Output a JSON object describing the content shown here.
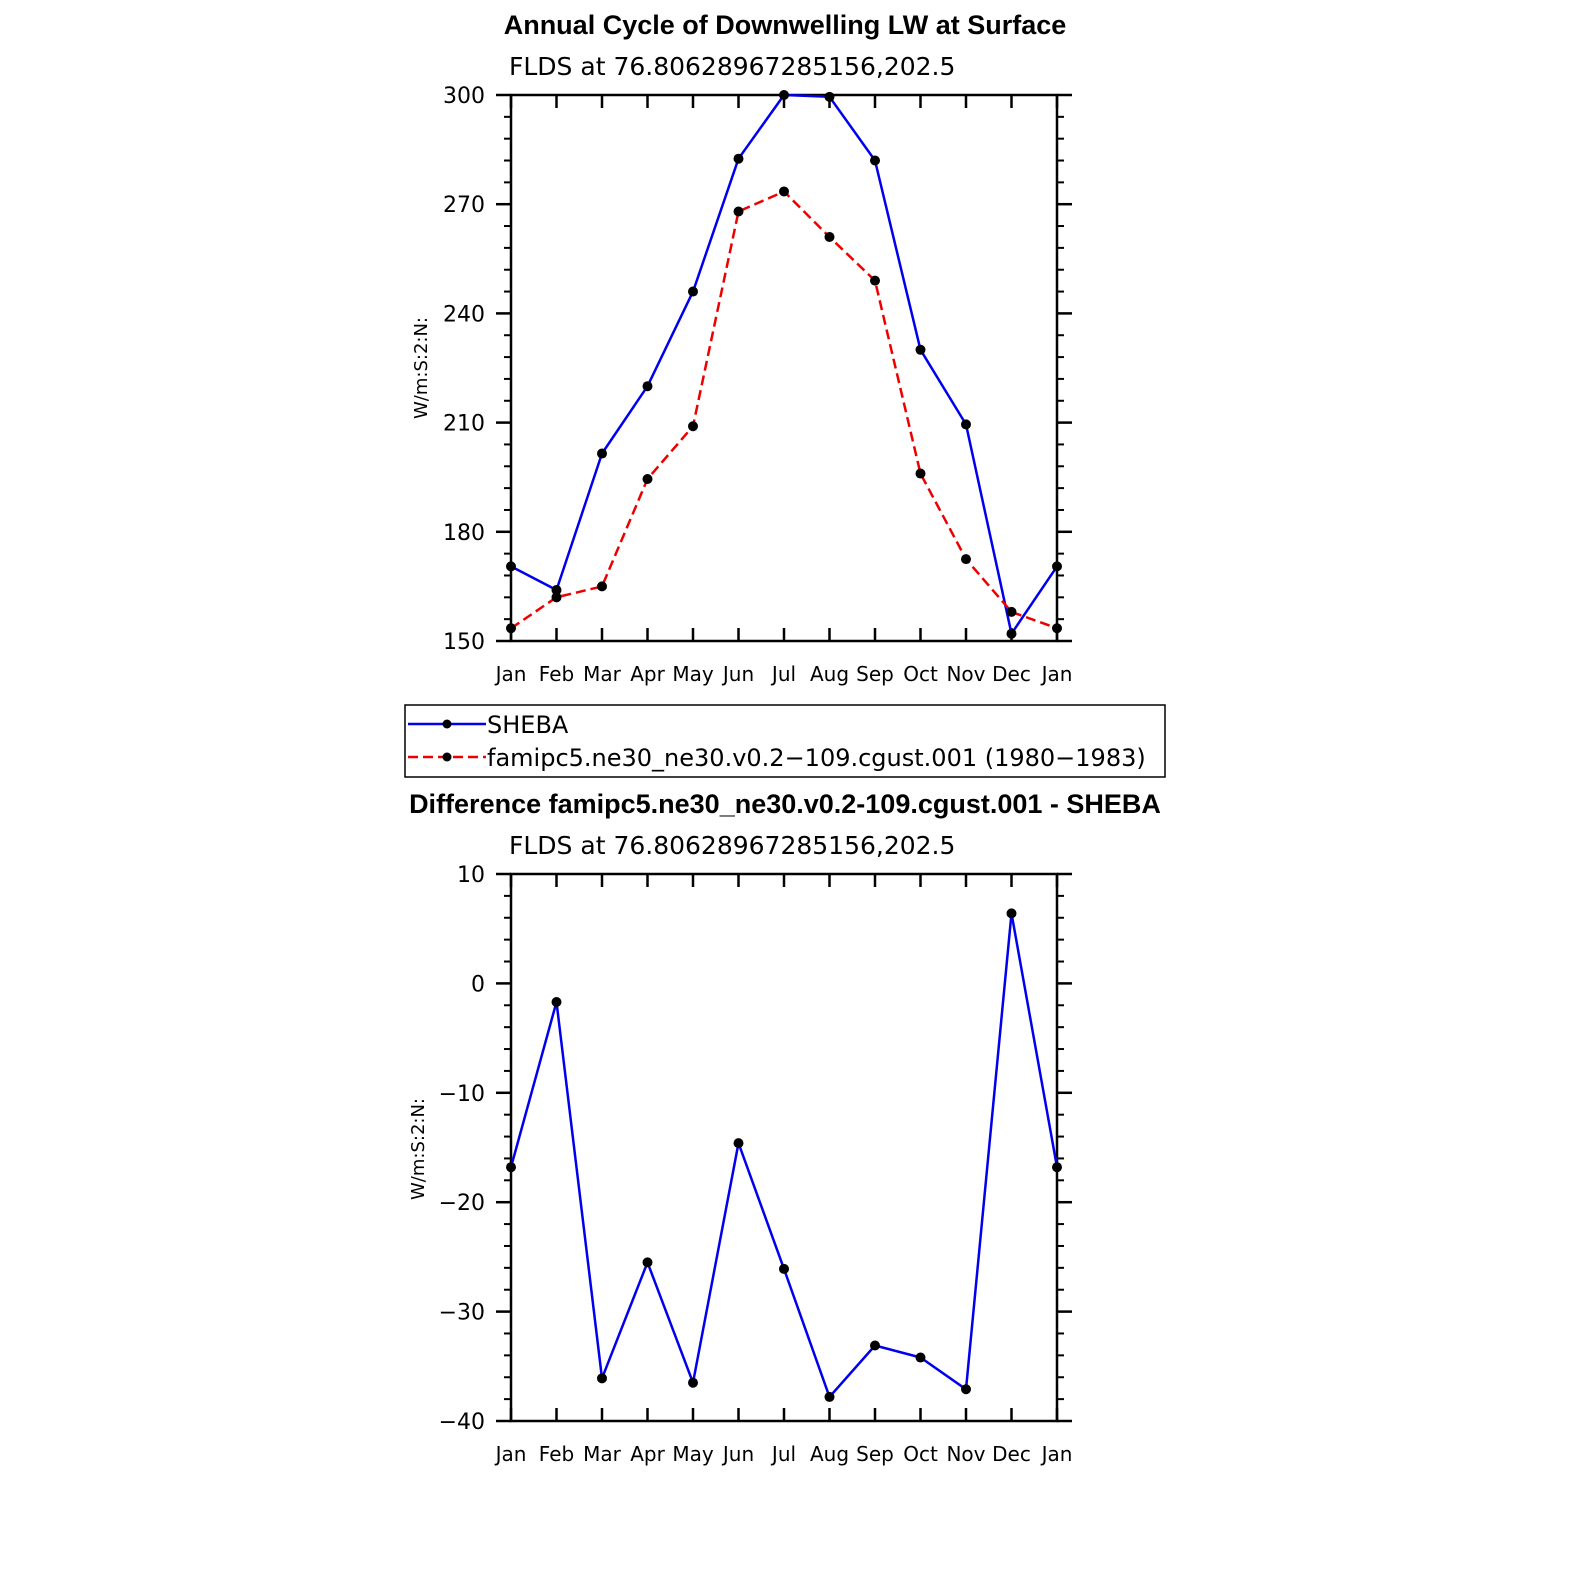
{
  "colors": {
    "sheba": "#0000ee",
    "model": "#ee0000",
    "marker": "#000000",
    "axis": "#000000"
  },
  "chart_data": [
    {
      "type": "line",
      "title": "Annual Cycle of Downwelling LW at Surface",
      "subtitle": "FLDS  at  76.80628967285156,202.5",
      "xlabel": "",
      "ylabel": "W/m:S:2:N:",
      "categories": [
        "Jan",
        "Feb",
        "Mar",
        "Apr",
        "May",
        "Jun",
        "Jul",
        "Aug",
        "Sep",
        "Oct",
        "Nov",
        "Dec",
        "Jan"
      ],
      "ylim": [
        150,
        300
      ],
      "yticks": [
        150,
        180,
        210,
        240,
        270,
        300
      ],
      "ytick_labels": [
        "150",
        "180",
        "210",
        "240",
        "270",
        "300"
      ],
      "grid": false,
      "legend_placement": "below",
      "series": [
        {
          "name": "SHEBA",
          "style": "solid",
          "values": [
            170.5,
            164,
            201.5,
            220,
            246,
            282.5,
            300,
            299.5,
            282,
            230,
            209.5,
            152,
            170.5
          ]
        },
        {
          "name": "famipc5.ne30_ne30.v0.2−109.cgust.001  (1980−1983)",
          "style": "dashed",
          "values": [
            153.5,
            162,
            165,
            194.5,
            209,
            268,
            273.5,
            261,
            249,
            196,
            172.5,
            158,
            153.5
          ]
        }
      ]
    },
    {
      "type": "line",
      "title": "Difference famipc5.ne30_ne30.v0.2-109.cgust.001 - SHEBA",
      "subtitle": "FLDS  at  76.80628967285156,202.5",
      "xlabel": "",
      "ylabel": "W/m:S:2:N:",
      "categories": [
        "Jan",
        "Feb",
        "Mar",
        "Apr",
        "May",
        "Jun",
        "Jul",
        "Aug",
        "Sep",
        "Oct",
        "Nov",
        "Dec",
        "Jan"
      ],
      "ylim": [
        -40,
        10
      ],
      "yticks": [
        -40,
        -30,
        -20,
        -10,
        0,
        10
      ],
      "ytick_labels": [
        "−40",
        "−30",
        "−20",
        "−10",
        "0",
        "10"
      ],
      "grid": false,
      "series": [
        {
          "style": "solid",
          "values": [
            -16.8,
            -1.7,
            -36.1,
            -25.5,
            -36.5,
            -14.6,
            -26.1,
            -37.8,
            -33.1,
            -34.2,
            -37.1,
            6.4,
            -16.8
          ]
        }
      ]
    }
  ]
}
